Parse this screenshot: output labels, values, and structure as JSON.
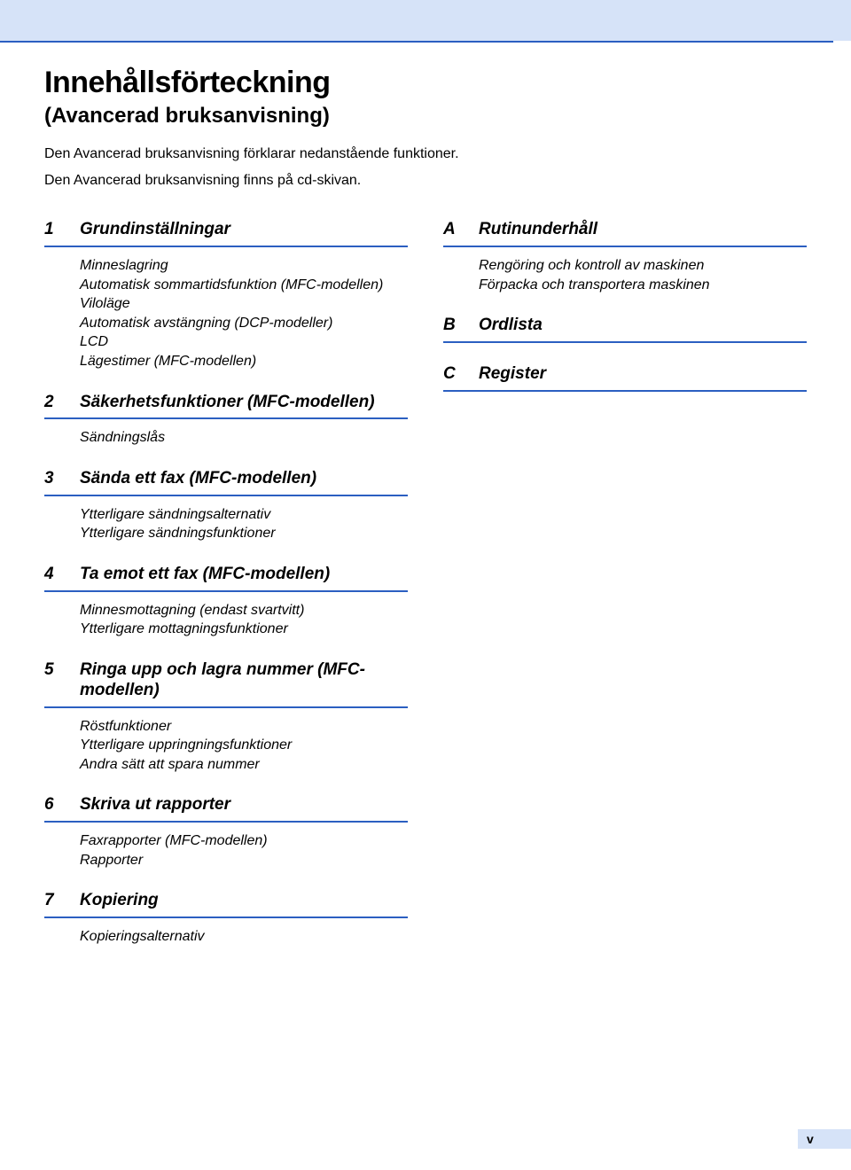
{
  "colors": {
    "topband": "#d6e3f8",
    "rule": "#2b5fc1",
    "text": "#000000",
    "background": "#ffffff",
    "tab": "#d6e3f8"
  },
  "header": {
    "title": "Innehållsförteckning",
    "subtitle": "(Avancerad bruksanvisning)",
    "intro1": "Den Avancerad bruksanvisning förklarar nedanstående funktioner.",
    "intro2": "Den Avancerad bruksanvisning finns på cd-skivan."
  },
  "left": [
    {
      "num": "1",
      "title": "Grundinställningar",
      "items": [
        "Minneslagring",
        "Automatisk sommartidsfunktion (MFC-modellen)",
        "Viloläge",
        "Automatisk avstängning (DCP-modeller)",
        "LCD",
        "Lägestimer (MFC-modellen)"
      ]
    },
    {
      "num": "2",
      "title": "Säkerhetsfunktioner (MFC-modellen)",
      "items": [
        "Sändningslås"
      ]
    },
    {
      "num": "3",
      "title": "Sända ett fax (MFC-modellen)",
      "items": [
        "Ytterligare sändningsalternativ",
        "Ytterligare sändningsfunktioner"
      ]
    },
    {
      "num": "4",
      "title": "Ta emot ett fax (MFC-modellen)",
      "items": [
        "Minnesmottagning (endast svartvitt)",
        "Ytterligare mottagningsfunktioner"
      ]
    },
    {
      "num": "5",
      "title": "Ringa upp och lagra nummer (MFC-modellen)",
      "items": [
        "Röstfunktioner",
        "Ytterligare uppringningsfunktioner",
        "Andra sätt att spara nummer"
      ]
    },
    {
      "num": "6",
      "title": "Skriva ut rapporter",
      "items": [
        "Faxrapporter (MFC-modellen)",
        "Rapporter"
      ]
    },
    {
      "num": "7",
      "title": "Kopiering",
      "items": [
        "Kopieringsalternativ"
      ]
    }
  ],
  "right": [
    {
      "num": "A",
      "title": "Rutinunderhåll",
      "items": [
        "Rengöring och kontroll av maskinen",
        "Förpacka och transportera maskinen"
      ]
    },
    {
      "num": "B",
      "title": "Ordlista",
      "items": []
    },
    {
      "num": "C",
      "title": "Register",
      "items": []
    }
  ],
  "pageNumber": "v"
}
